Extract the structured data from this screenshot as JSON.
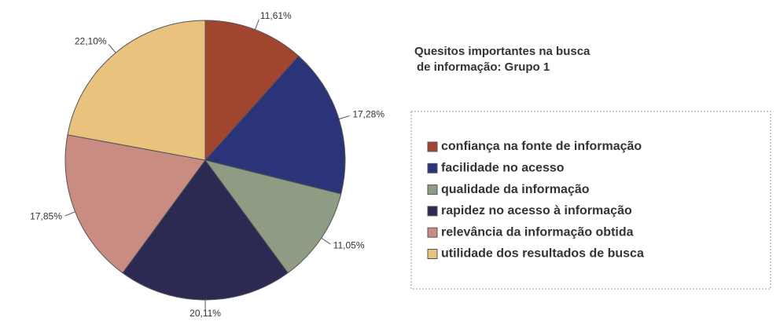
{
  "chart_data": {
    "type": "pie",
    "title": [
      "Quesitos importantes na busca",
      "de informação: Grupo 1"
    ],
    "categories": [
      "confiança na fonte de informação",
      "facilidade no acesso",
      "qualidade da informação",
      "rapidez no acesso à informação",
      "relevância da informação obtida",
      "utilidade dos resultados de busca"
    ],
    "values": [
      11.61,
      17.28,
      11.05,
      20.11,
      17.85,
      22.1
    ],
    "value_labels": [
      "11,61%",
      "17,28%",
      "11,05%",
      "20,11%",
      "17,85%",
      "22,10%"
    ],
    "colors": [
      "#a2452e",
      "#2b3478",
      "#8e9c84",
      "#2c2a52",
      "#c98c82",
      "#e9c37e"
    ],
    "legend": "right"
  }
}
